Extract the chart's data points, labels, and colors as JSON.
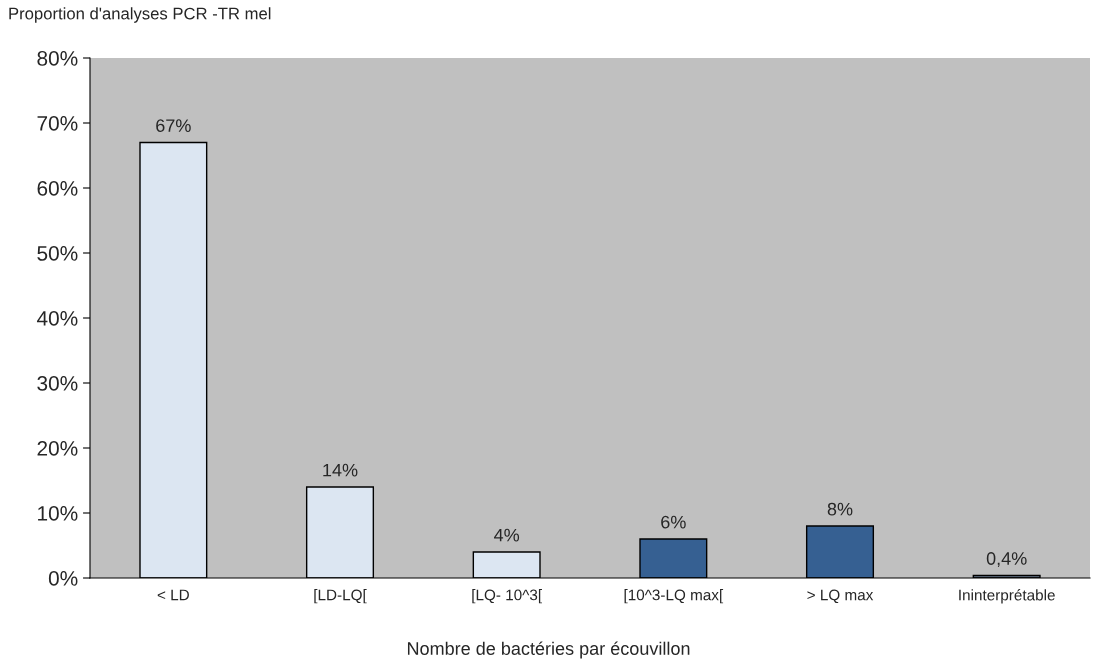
{
  "chart_data": {
    "type": "bar",
    "ylabel": "Proportion d'analyses PCR -TR mel",
    "xlabel": "Nombre de bactéries par écouvillon",
    "categories": [
      "< LD",
      "[LD-LQ[",
      "[LQ- 10^3[",
      "[10^3-LQ max[",
      "> LQ max",
      "Ininterprétable"
    ],
    "values": [
      67,
      14,
      4,
      6,
      8,
      0.4
    ],
    "colors": [
      "#dce6f2",
      "#dce6f2",
      "#dce6f2",
      "#366092",
      "#366092",
      "#4f5b6b"
    ],
    "value_labels": [
      "67%",
      "14%",
      "4%",
      "6%",
      "8%",
      "0,4%"
    ],
    "ylim": [
      0,
      80
    ],
    "yticks": [
      {
        "value": 0,
        "label": "0%"
      },
      {
        "value": 10,
        "label": "10%"
      },
      {
        "value": 20,
        "label": "20%"
      },
      {
        "value": 30,
        "label": "30%"
      },
      {
        "value": 40,
        "label": "40%"
      },
      {
        "value": 50,
        "label": "50%"
      },
      {
        "value": 60,
        "label": "60%"
      },
      {
        "value": 70,
        "label": "70%"
      },
      {
        "value": 80,
        "label": "80%"
      }
    ],
    "grid": false,
    "legend": false
  }
}
